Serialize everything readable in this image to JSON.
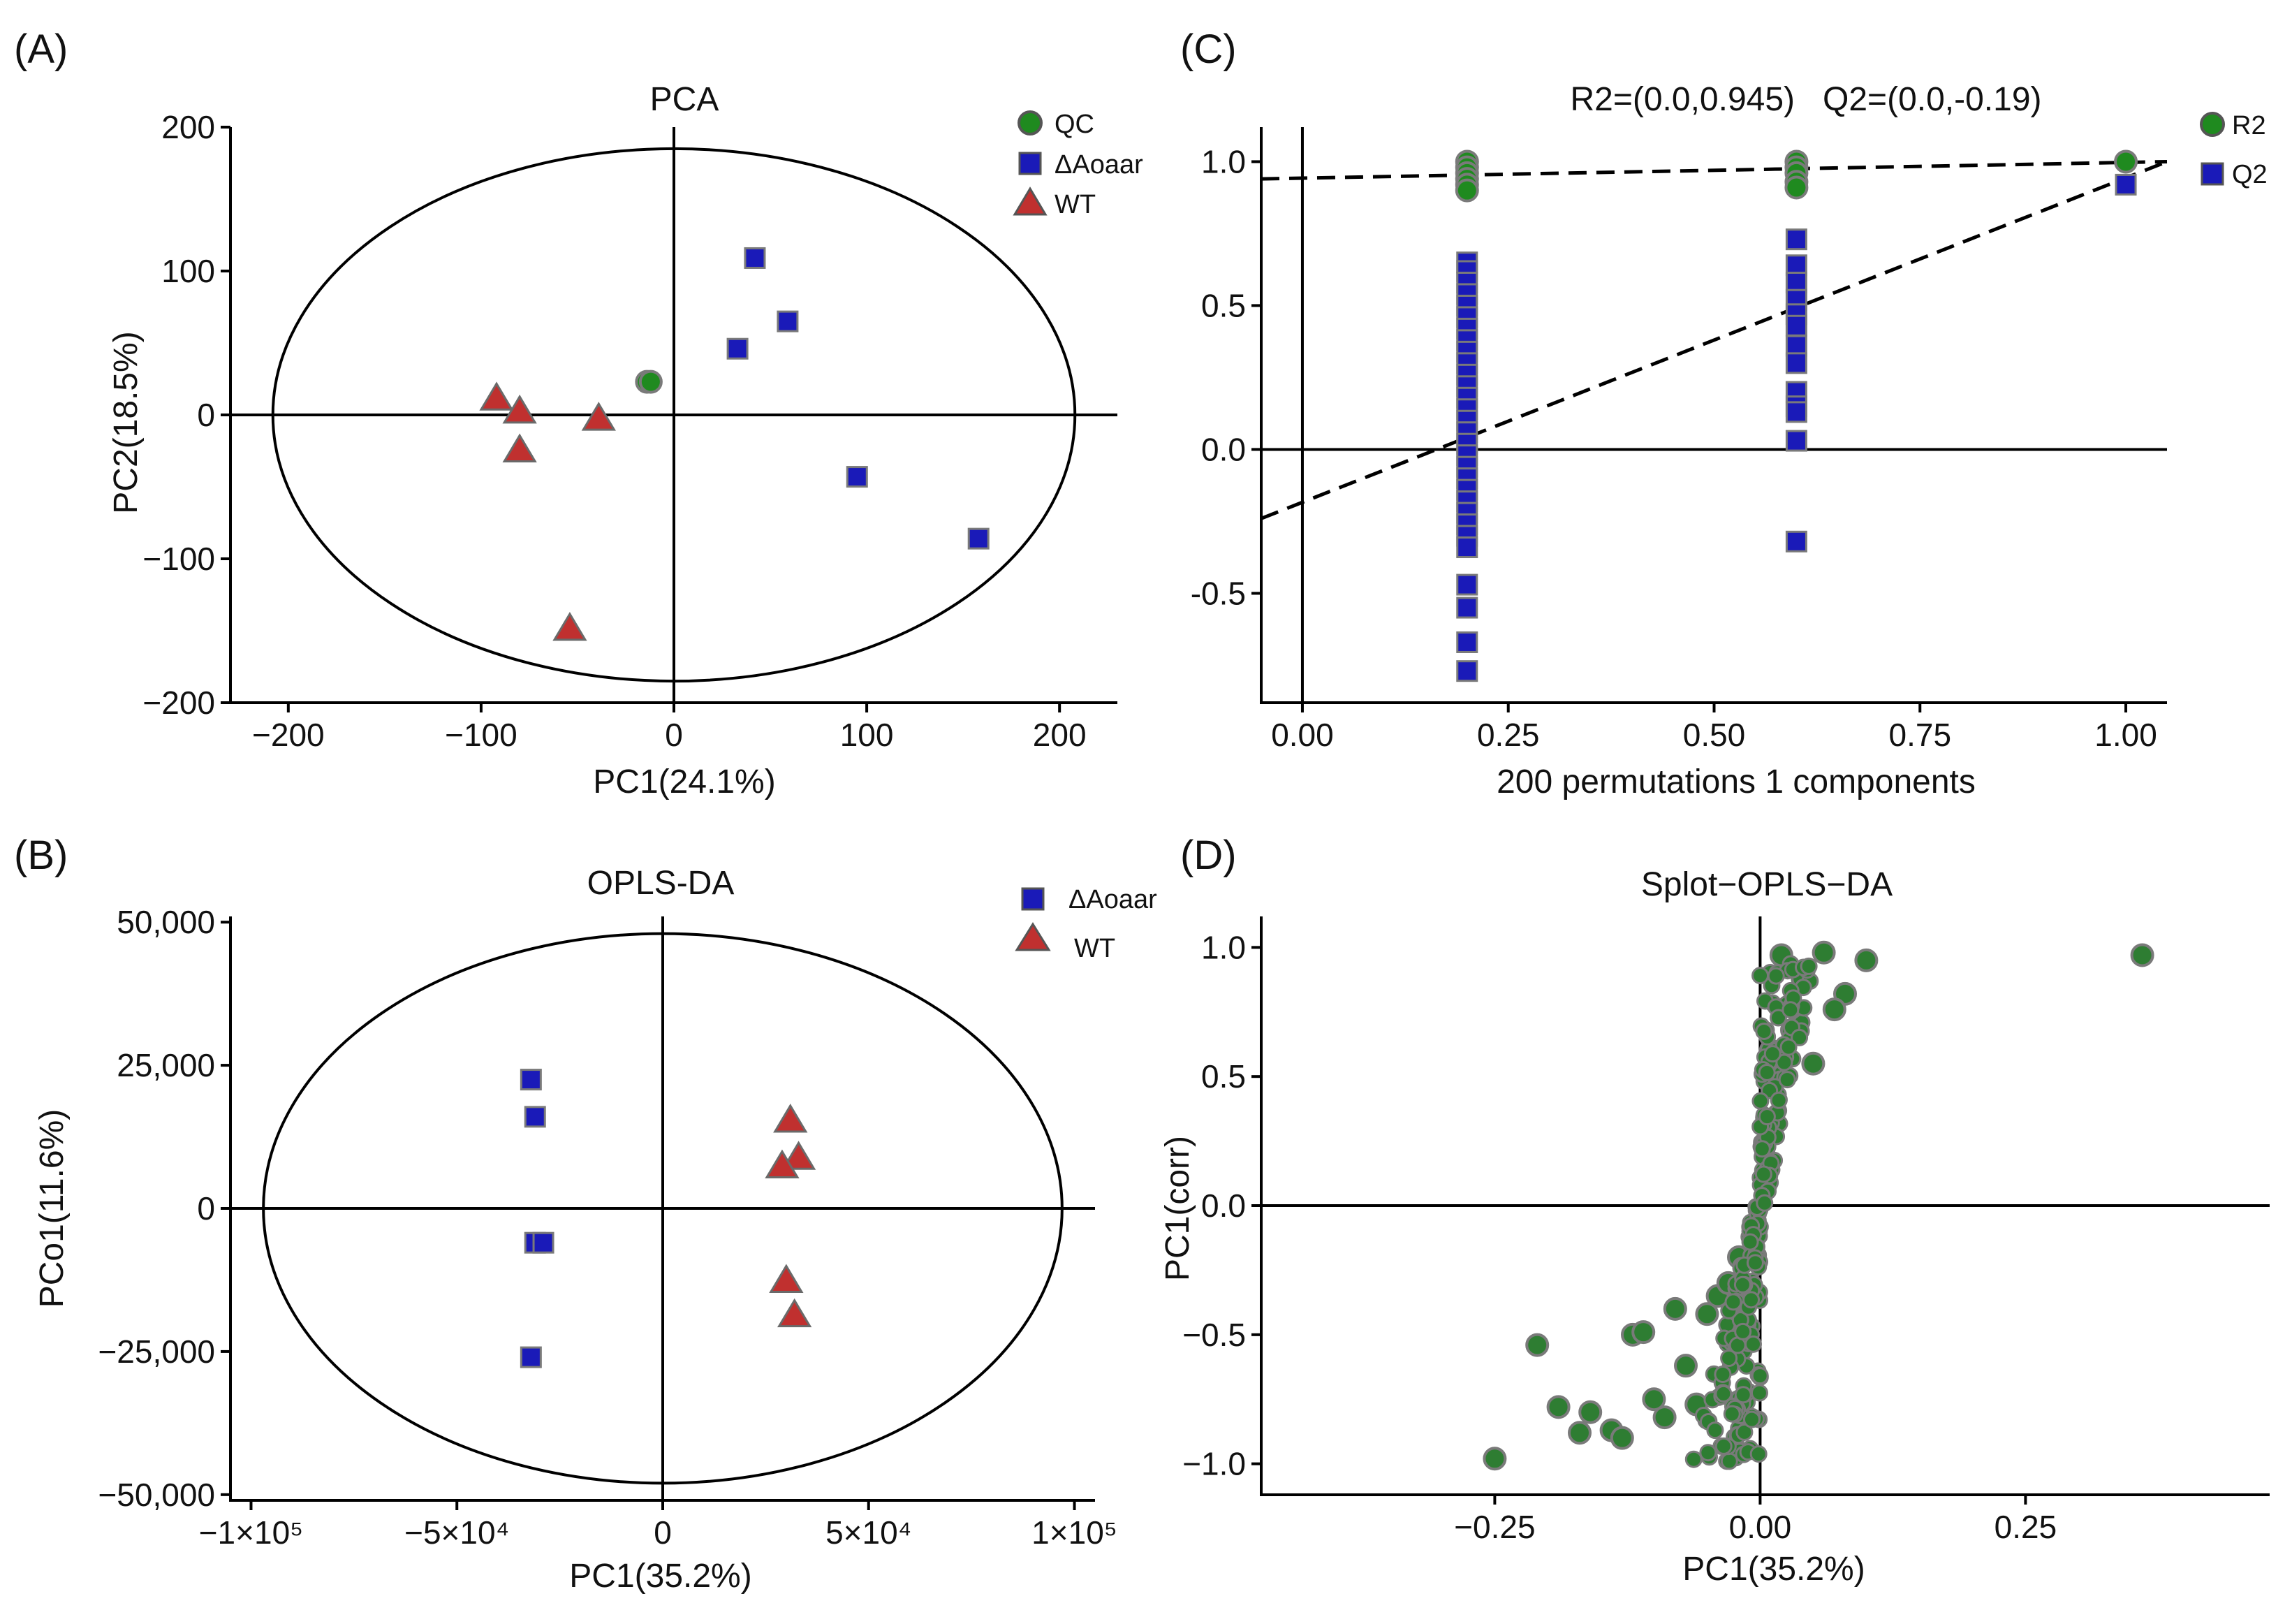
{
  "chart_data": [
    {
      "id": "A",
      "type": "scatter",
      "panel_label": "(A)",
      "title": "PCA",
      "xlabel": "PC1(24.1%)",
      "ylabel": "PC2(18.5%)",
      "xlim": [
        -230,
        230
      ],
      "ylim": [
        -200,
        200
      ],
      "xticks": [
        -200,
        -100,
        0,
        100,
        200
      ],
      "xtick_labels": [
        "−200",
        "−100",
        "0",
        "100",
        "200"
      ],
      "yticks": [
        -200,
        -100,
        0,
        100,
        200
      ],
      "ytick_labels": [
        "−200",
        "−100",
        "0",
        "100",
        "200"
      ],
      "ellipse": {
        "cx": 0,
        "cy": 0,
        "rx": 208,
        "ry": 185
      },
      "legend": [
        {
          "label": "QC",
          "shape": "circle",
          "color": "#1f8a1f"
        },
        {
          "label": "ΔAoaar",
          "shape": "square",
          "color": "#1a1ab8"
        },
        {
          "label": "WT",
          "shape": "triangle",
          "color": "#c0302f"
        }
      ],
      "series": [
        {
          "name": "QC",
          "shape": "circle",
          "color": "#1f8a1f",
          "points": [
            [
              -14,
              23
            ],
            [
              -12,
              23
            ]
          ]
        },
        {
          "name": "ΔAoaar",
          "shape": "square",
          "color": "#1a1ab8",
          "points": [
            [
              42,
              109
            ],
            [
              59,
              65
            ],
            [
              33,
              46
            ],
            [
              95,
              -43
            ],
            [
              158,
              -86
            ]
          ]
        },
        {
          "name": "WT",
          "shape": "triangle",
          "color": "#c0302f",
          "points": [
            [
              -92,
              12
            ],
            [
              -80,
              3
            ],
            [
              -80,
              -24
            ],
            [
              -39,
              -2
            ],
            [
              -54,
              -148
            ]
          ]
        }
      ]
    },
    {
      "id": "C",
      "type": "scatter",
      "panel_label": "(C)",
      "title": "R2=(0.0,0.945)   Q2=(0.0,-0.19)",
      "xlabel": "200 permutations 1 components",
      "ylabel": "",
      "xlim": [
        -0.05,
        1.05
      ],
      "ylim": [
        -0.88,
        1.12
      ],
      "xticks": [
        0,
        0.25,
        0.5,
        0.75,
        1.0
      ],
      "xtick_labels": [
        "0.00",
        "0.25",
        "0.50",
        "0.75",
        "1.00"
      ],
      "yticks": [
        -0.5,
        0,
        0.5,
        1.0
      ],
      "ytick_labels": [
        "-0.5",
        "0.0",
        "0.5",
        "1.0"
      ],
      "legend": [
        {
          "label": "R2",
          "shape": "circle",
          "color": "#1f8a1f"
        },
        {
          "label": "Q2",
          "shape": "square",
          "color": "#1a1ab8"
        }
      ],
      "series": [
        {
          "name": "R2",
          "shape": "circle",
          "color": "#1f8a1f",
          "points": [
            [
              0.2,
              1.0
            ],
            [
              0.2,
              0.98
            ],
            [
              0.2,
              0.96
            ],
            [
              0.2,
              0.94
            ],
            [
              0.2,
              0.92
            ],
            [
              0.2,
              0.9
            ],
            [
              0.6,
              1.0
            ],
            [
              0.6,
              0.98
            ],
            [
              0.6,
              0.96
            ],
            [
              0.6,
              0.93
            ],
            [
              0.6,
              0.91
            ],
            [
              1.0,
              1.0
            ]
          ]
        },
        {
          "name": "Q2",
          "shape": "square",
          "color": "#1a1ab8",
          "points": [
            [
              0.2,
              0.65
            ],
            [
              0.2,
              0.62
            ],
            [
              0.2,
              0.58
            ],
            [
              0.2,
              0.54
            ],
            [
              0.2,
              0.5
            ],
            [
              0.2,
              0.46
            ],
            [
              0.2,
              0.42
            ],
            [
              0.2,
              0.38
            ],
            [
              0.2,
              0.34
            ],
            [
              0.2,
              0.3
            ],
            [
              0.2,
              0.26
            ],
            [
              0.2,
              0.22
            ],
            [
              0.2,
              0.18
            ],
            [
              0.2,
              0.14
            ],
            [
              0.2,
              0.1
            ],
            [
              0.2,
              0.06
            ],
            [
              0.2,
              0.02
            ],
            [
              0.2,
              -0.02
            ],
            [
              0.2,
              -0.06
            ],
            [
              0.2,
              -0.1
            ],
            [
              0.2,
              -0.14
            ],
            [
              0.2,
              -0.18
            ],
            [
              0.2,
              -0.22
            ],
            [
              0.2,
              -0.26
            ],
            [
              0.2,
              -0.3
            ],
            [
              0.2,
              -0.34
            ],
            [
              0.2,
              -0.47
            ],
            [
              0.2,
              -0.55
            ],
            [
              0.2,
              -0.67
            ],
            [
              0.2,
              -0.77
            ],
            [
              0.6,
              0.73
            ],
            [
              0.6,
              0.64
            ],
            [
              0.6,
              0.58
            ],
            [
              0.6,
              0.52
            ],
            [
              0.6,
              0.47
            ],
            [
              0.6,
              0.43
            ],
            [
              0.6,
              0.36
            ],
            [
              0.6,
              0.3
            ],
            [
              0.6,
              0.2
            ],
            [
              0.6,
              0.15
            ],
            [
              0.6,
              0.13
            ],
            [
              0.6,
              0.03
            ],
            [
              0.6,
              -0.32
            ],
            [
              1.0,
              0.92
            ]
          ]
        }
      ],
      "reference_lines": [
        {
          "name": "R2 regression",
          "from": [
            -0.05,
            0.94
          ],
          "to": [
            1.05,
            1.0
          ]
        },
        {
          "name": "Q2 regression",
          "from": [
            -0.05,
            -0.24
          ],
          "to": [
            1.05,
            1.0
          ]
        }
      ]
    },
    {
      "id": "B",
      "type": "scatter",
      "panel_label": "(B)",
      "title": "OPLS-DA",
      "xlabel": "PC1(35.2%)",
      "ylabel": "PCo1(11.6%)",
      "xlim": [
        -105000,
        105000
      ],
      "ylim": [
        -51000,
        51000
      ],
      "xticks": [
        -100000,
        -50000,
        0,
        50000,
        100000
      ],
      "xtick_labels": [
        "−1×10⁵",
        "−5×10⁴",
        "0",
        "5×10⁴",
        "1×10⁵"
      ],
      "yticks": [
        -50000,
        -25000,
        0,
        25000,
        50000
      ],
      "ytick_labels": [
        "−50,000",
        "−25,000",
        "0",
        "25,000",
        "50,000"
      ],
      "ellipse": {
        "cx": 0,
        "cy": 0,
        "rx": 97000,
        "ry": 48000
      },
      "legend": [
        {
          "label": "ΔAoaar",
          "shape": "square",
          "color": "#1a1ab8"
        },
        {
          "label": "WT",
          "shape": "triangle",
          "color": "#c0302f"
        }
      ],
      "series": [
        {
          "name": "ΔAoaar",
          "shape": "square",
          "color": "#1a1ab8",
          "points": [
            [
              -32000,
              22500
            ],
            [
              -31000,
              16000
            ],
            [
              -31000,
              -6000
            ],
            [
              -29000,
              -6000
            ],
            [
              -32000,
              -26000
            ]
          ]
        },
        {
          "name": "WT",
          "shape": "triangle",
          "color": "#c0302f",
          "points": [
            [
              31000,
              15500
            ],
            [
              33000,
              9000
            ],
            [
              29000,
              7500
            ],
            [
              30000,
              -12500
            ],
            [
              32000,
              -18500
            ]
          ]
        }
      ]
    },
    {
      "id": "D",
      "type": "scatter",
      "panel_label": "(D)",
      "title": "Splot−OPLS−DA",
      "xlabel": "PC1(35.2%)",
      "ylabel": "PC1(corr)",
      "xlim": [
        -0.47,
        0.48
      ],
      "ylim": [
        -1.12,
        1.12
      ],
      "xticks": [
        -0.25,
        0,
        0.25
      ],
      "xtick_labels": [
        "−0.25",
        "0.00",
        "0.25"
      ],
      "yticks": [
        -1.0,
        -0.5,
        0,
        0.5,
        1.0
      ],
      "ytick_labels": [
        "−1.0",
        "−0.5",
        "0.0",
        "0.5",
        "1.0"
      ],
      "series": [
        {
          "name": "variables",
          "shape": "circle",
          "color": "#2e7d32",
          "points": [
            [
              0.36,
              0.97
            ],
            [
              -0.25,
              -0.98
            ],
            [
              -0.21,
              -0.54
            ],
            [
              -0.19,
              -0.78
            ],
            [
              -0.17,
              -0.88
            ],
            [
              -0.16,
              -0.8
            ],
            [
              -0.14,
              -0.87
            ],
            [
              -0.13,
              -0.9
            ],
            [
              -0.12,
              -0.5
            ],
            [
              -0.11,
              -0.49
            ],
            [
              -0.1,
              -0.75
            ],
            [
              -0.09,
              -0.82
            ],
            [
              -0.08,
              -0.4
            ],
            [
              -0.07,
              -0.62
            ],
            [
              -0.06,
              -0.77
            ],
            [
              -0.05,
              -0.42
            ],
            [
              -0.04,
              -0.35
            ],
            [
              -0.03,
              -0.3
            ],
            [
              -0.02,
              -0.2
            ],
            [
              0.1,
              0.95
            ],
            [
              0.08,
              0.82
            ],
            [
              0.07,
              0.76
            ],
            [
              0.06,
              0.98
            ],
            [
              0.05,
              0.55
            ],
            [
              0.04,
              0.88
            ],
            [
              0.03,
              0.68
            ],
            [
              0.02,
              0.97
            ],
            [
              0.01,
              0.6
            ]
          ]
        }
      ]
    }
  ]
}
